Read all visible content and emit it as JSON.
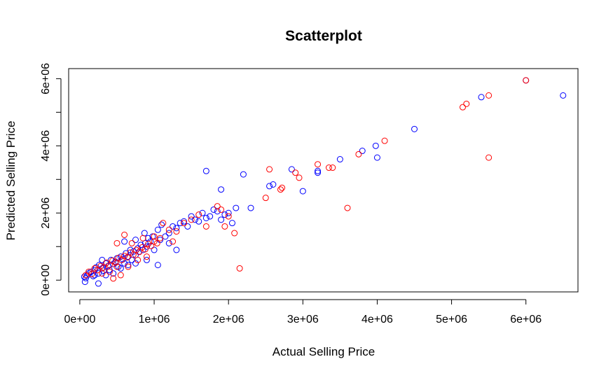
{
  "chart_data": {
    "type": "scatter",
    "title": "Scatterplot",
    "xlabel": "Actual Selling Price",
    "ylabel": "Predicted Selling Price",
    "xlim": [
      -150000,
      6700000
    ],
    "ylim": [
      -350000,
      6300000
    ],
    "x_ticks": [
      {
        "value": 0,
        "label": "0e+00"
      },
      {
        "value": 1000000,
        "label": "1e+06"
      },
      {
        "value": 2000000,
        "label": "2e+06"
      },
      {
        "value": 3000000,
        "label": "3e+06"
      },
      {
        "value": 4000000,
        "label": "4e+06"
      },
      {
        "value": 5000000,
        "label": "5e+06"
      },
      {
        "value": 6000000,
        "label": "6e+06"
      }
    ],
    "y_ticks": [
      {
        "value": 0,
        "label": "0e+00"
      },
      {
        "value": 1000000,
        "label": ""
      },
      {
        "value": 2000000,
        "label": "2e+06"
      },
      {
        "value": 3000000,
        "label": ""
      },
      {
        "value": 4000000,
        "label": "4e+06"
      },
      {
        "value": 5000000,
        "label": ""
      },
      {
        "value": 6000000,
        "label": "6e+06"
      }
    ],
    "grid": false,
    "legend": "none",
    "series": [
      {
        "color": "#0000ff",
        "points": [
          [
            60000,
            100000
          ],
          [
            80000,
            60000
          ],
          [
            100000,
            140000
          ],
          [
            120000,
            200000
          ],
          [
            150000,
            250000
          ],
          [
            180000,
            120000
          ],
          [
            200000,
            300000
          ],
          [
            220000,
            380000
          ],
          [
            250000,
            200000
          ],
          [
            260000,
            450000
          ],
          [
            300000,
            350000
          ],
          [
            320000,
            280000
          ],
          [
            350000,
            500000
          ],
          [
            380000,
            420000
          ],
          [
            400000,
            300000
          ],
          [
            420000,
            600000
          ],
          [
            450000,
            480000
          ],
          [
            480000,
            550000
          ],
          [
            500000,
            650000
          ],
          [
            520000,
            400000
          ],
          [
            550000,
            700000
          ],
          [
            580000,
            620000
          ],
          [
            600000,
            500000
          ],
          [
            620000,
            800000
          ],
          [
            650000,
            700000
          ],
          [
            680000,
            900000
          ],
          [
            700000,
            600000
          ],
          [
            720000,
            850000
          ],
          [
            750000,
            750000
          ],
          [
            780000,
            950000
          ],
          [
            800000,
            850000
          ],
          [
            820000,
            1050000
          ],
          [
            850000,
            900000
          ],
          [
            880000,
            1100000
          ],
          [
            900000,
            1000000
          ],
          [
            920000,
            1250000
          ],
          [
            950000,
            1150000
          ],
          [
            980000,
            1300000
          ],
          [
            1000000,
            900000
          ],
          [
            1050000,
            1500000
          ],
          [
            1080000,
            1200000
          ],
          [
            1100000,
            1650000
          ],
          [
            1150000,
            1300000
          ],
          [
            1200000,
            1400000
          ],
          [
            1250000,
            1600000
          ],
          [
            1300000,
            1550000
          ],
          [
            1350000,
            1700000
          ],
          [
            1400000,
            1750000
          ],
          [
            1450000,
            1600000
          ],
          [
            1500000,
            1900000
          ],
          [
            1550000,
            1800000
          ],
          [
            1600000,
            1750000
          ],
          [
            1650000,
            2000000
          ],
          [
            1700000,
            1850000
          ],
          [
            1750000,
            1900000
          ],
          [
            1800000,
            2100000
          ],
          [
            1850000,
            2050000
          ],
          [
            1900000,
            1800000
          ],
          [
            1950000,
            1950000
          ],
          [
            2000000,
            2000000
          ],
          [
            2050000,
            1700000
          ],
          [
            2100000,
            2150000
          ],
          [
            2300000,
            2150000
          ],
          [
            1700000,
            3250000
          ],
          [
            1900000,
            2700000
          ],
          [
            2200000,
            3150000
          ],
          [
            2550000,
            2800000
          ],
          [
            2600000,
            2850000
          ],
          [
            2850000,
            3300000
          ],
          [
            3000000,
            2650000
          ],
          [
            3200000,
            3200000
          ],
          [
            3200000,
            3250000
          ],
          [
            3500000,
            3600000
          ],
          [
            3800000,
            3850000
          ],
          [
            3980000,
            4000000
          ],
          [
            4000000,
            3650000
          ],
          [
            4500000,
            4500000
          ],
          [
            5400000,
            5450000
          ],
          [
            6000000,
            5950000
          ],
          [
            6500000,
            5500000
          ],
          [
            1050000,
            450000
          ],
          [
            600000,
            1150000
          ],
          [
            750000,
            1200000
          ],
          [
            900000,
            600000
          ],
          [
            350000,
            150000
          ],
          [
            250000,
            -100000
          ],
          [
            70000,
            -50000
          ],
          [
            200000,
            150000
          ],
          [
            300000,
            600000
          ],
          [
            450000,
            200000
          ],
          [
            550000,
            350000
          ],
          [
            650000,
            450000
          ],
          [
            750000,
            500000
          ],
          [
            1200000,
            1100000
          ],
          [
            1300000,
            900000
          ],
          [
            870000,
            1400000
          ]
        ]
      },
      {
        "color": "#ff0000",
        "points": [
          [
            80000,
            150000
          ],
          [
            120000,
            250000
          ],
          [
            160000,
            180000
          ],
          [
            200000,
            350000
          ],
          [
            240000,
            300000
          ],
          [
            280000,
            420000
          ],
          [
            320000,
            380000
          ],
          [
            360000,
            520000
          ],
          [
            400000,
            450000
          ],
          [
            440000,
            580000
          ],
          [
            480000,
            520000
          ],
          [
            520000,
            660000
          ],
          [
            560000,
            600000
          ],
          [
            600000,
            720000
          ],
          [
            640000,
            680000
          ],
          [
            680000,
            820000
          ],
          [
            720000,
            760000
          ],
          [
            760000,
            900000
          ],
          [
            800000,
            840000
          ],
          [
            840000,
            980000
          ],
          [
            880000,
            920000
          ],
          [
            920000,
            1080000
          ],
          [
            960000,
            1020000
          ],
          [
            1000000,
            1150000
          ],
          [
            1040000,
            1100000
          ],
          [
            1080000,
            1250000
          ],
          [
            1120000,
            1700000
          ],
          [
            1200000,
            1500000
          ],
          [
            1300000,
            1450000
          ],
          [
            1400000,
            1700000
          ],
          [
            1500000,
            1800000
          ],
          [
            1600000,
            1950000
          ],
          [
            1700000,
            1600000
          ],
          [
            1850000,
            2200000
          ],
          [
            1950000,
            1600000
          ],
          [
            2000000,
            1900000
          ],
          [
            2080000,
            1400000
          ],
          [
            2150000,
            350000
          ],
          [
            2500000,
            2450000
          ],
          [
            2550000,
            3300000
          ],
          [
            2700000,
            2700000
          ],
          [
            2720000,
            2750000
          ],
          [
            2900000,
            3200000
          ],
          [
            2950000,
            3050000
          ],
          [
            3200000,
            3450000
          ],
          [
            3350000,
            3350000
          ],
          [
            3400000,
            3350000
          ],
          [
            3600000,
            2150000
          ],
          [
            3750000,
            3750000
          ],
          [
            4100000,
            4150000
          ],
          [
            5150000,
            5150000
          ],
          [
            5200000,
            5250000
          ],
          [
            5500000,
            3650000
          ],
          [
            5500000,
            5500000
          ],
          [
            6000000,
            5950000
          ],
          [
            450000,
            50000
          ],
          [
            550000,
            150000
          ],
          [
            700000,
            1100000
          ],
          [
            500000,
            1100000
          ],
          [
            600000,
            1350000
          ],
          [
            850000,
            1250000
          ],
          [
            300000,
            200000
          ],
          [
            400000,
            250000
          ],
          [
            500000,
            400000
          ],
          [
            650000,
            400000
          ],
          [
            780000,
            600000
          ],
          [
            900000,
            700000
          ],
          [
            1000000,
            1300000
          ],
          [
            1250000,
            1150000
          ],
          [
            1900000,
            2100000
          ]
        ]
      }
    ]
  }
}
